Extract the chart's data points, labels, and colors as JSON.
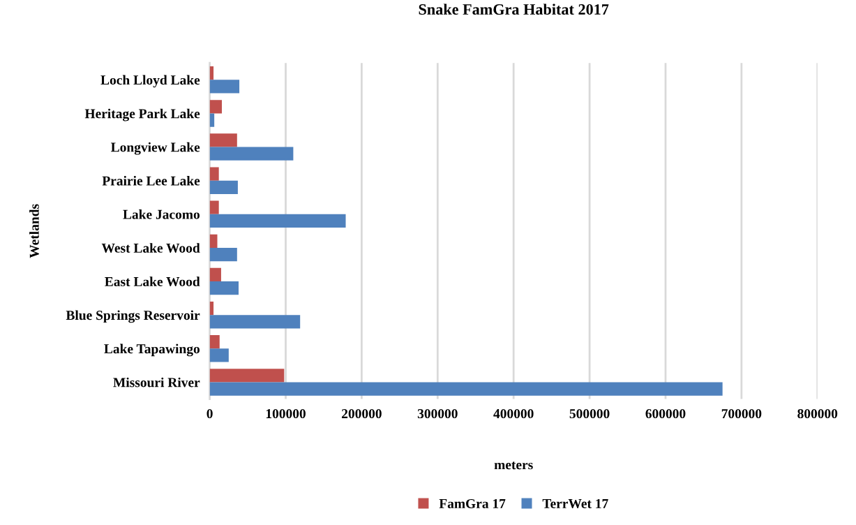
{
  "chart_data": {
    "type": "bar",
    "orientation": "horizontal",
    "title": "Snake FamGra Habitat 2017",
    "xlabel": "meters",
    "ylabel": "Wetlands",
    "categories": [
      "Loch Lloyd Lake",
      "Heritage Park Lake",
      "Longview Lake",
      "Prairie Lee Lake",
      "Lake Jacomo",
      "West Lake Wood",
      "East Lake Wood",
      "Blue Springs Reservoir",
      "Lake Tapawingo",
      "Missouri River"
    ],
    "series": [
      {
        "name": "FamGra 17",
        "color": "#c0504d",
        "values": [
          5000,
          16000,
          36000,
          12000,
          12000,
          10000,
          15000,
          5000,
          13000,
          98000
        ]
      },
      {
        "name": "TerrWet 17",
        "color": "#4f81bd",
        "values": [
          39000,
          6000,
          110000,
          37000,
          179000,
          36000,
          38000,
          119000,
          25000,
          675000
        ]
      }
    ],
    "xlim": [
      0,
      800000
    ],
    "xticks": [
      0,
      100000,
      200000,
      300000,
      400000,
      500000,
      600000,
      700000,
      800000
    ],
    "grid": "x",
    "legend": "bottom"
  }
}
